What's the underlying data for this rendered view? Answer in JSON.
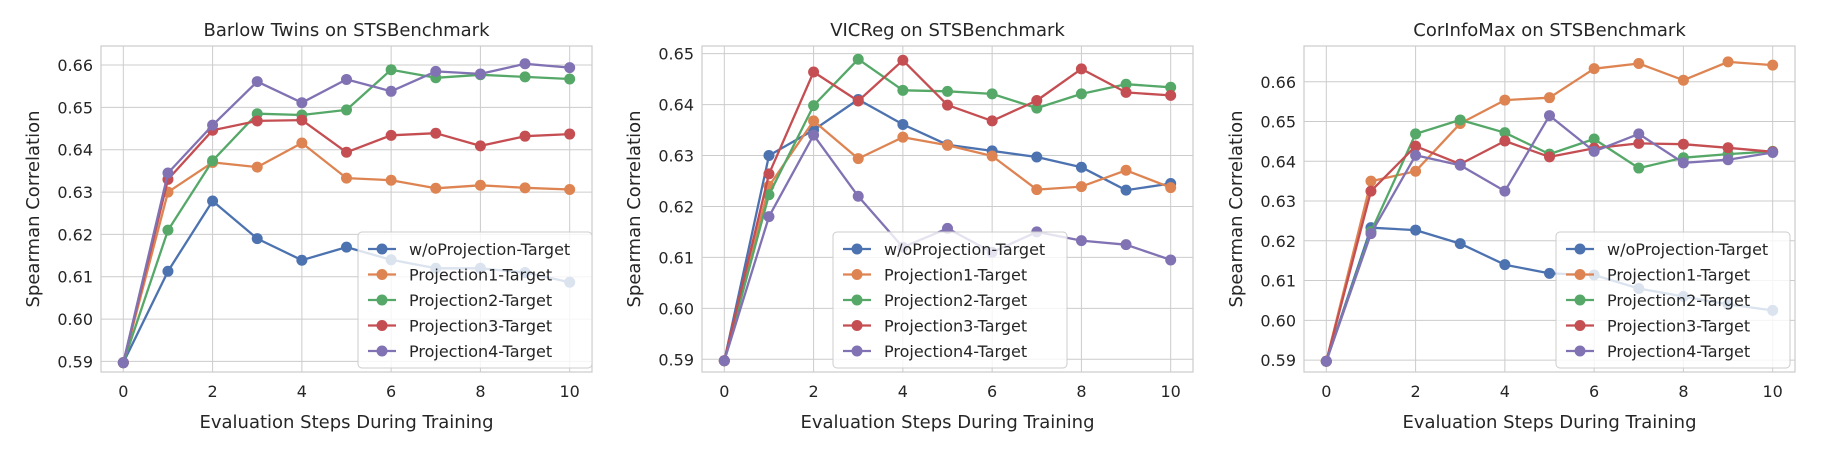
{
  "chart_data": [
    {
      "type": "line",
      "title": "Barlow Twins on STSBenchmark",
      "xlabel": "Evaluation Steps During Training",
      "ylabel": "Spearman Correlation",
      "xlim": [
        -0.5,
        10.5
      ],
      "ylim": [
        0.5875,
        0.6645
      ],
      "xticks": [
        0,
        2,
        4,
        6,
        8,
        10
      ],
      "yticks": [
        0.59,
        0.6,
        0.61,
        0.62,
        0.63,
        0.64,
        0.65,
        0.66
      ],
      "ytick_labels": [
        "0.59",
        "0.60",
        "0.61",
        "0.62",
        "0.63",
        "0.64",
        "0.65",
        "0.66"
      ],
      "legend": "lower-right",
      "grid": true,
      "x": [
        0,
        1,
        2,
        3,
        4,
        5,
        6,
        7,
        8,
        9,
        10
      ],
      "series": [
        {
          "name": "w/oProjection-Target",
          "color": "#4c72b0",
          "values": [
            0.5897,
            0.6113,
            0.6279,
            0.619,
            0.6139,
            0.617,
            0.614,
            0.612,
            0.612,
            0.611,
            0.6087
          ]
        },
        {
          "name": "Projection1-Target",
          "color": "#dd8452",
          "values": [
            0.5897,
            0.63,
            0.637,
            0.6359,
            0.6416,
            0.6333,
            0.6328,
            0.6309,
            0.6316,
            0.631,
            0.6306
          ]
        },
        {
          "name": "Projection2-Target",
          "color": "#55a868",
          "values": [
            0.5897,
            0.621,
            0.6374,
            0.6485,
            0.6482,
            0.6494,
            0.6589,
            0.657,
            0.6577,
            0.6572,
            0.6567
          ]
        },
        {
          "name": "Projection3-Target",
          "color": "#c44e52",
          "values": [
            0.5897,
            0.633,
            0.6446,
            0.6468,
            0.647,
            0.6394,
            0.6434,
            0.6439,
            0.6409,
            0.6432,
            0.6437
          ]
        },
        {
          "name": "Projection4-Target",
          "color": "#8172b3",
          "values": [
            0.5897,
            0.6345,
            0.6458,
            0.6561,
            0.6511,
            0.6566,
            0.6538,
            0.6585,
            0.6579,
            0.6603,
            0.6594
          ]
        }
      ]
    },
    {
      "type": "line",
      "title": "VICReg on STSBenchmark",
      "xlabel": "Evaluation Steps During Training",
      "ylabel": "Spearman Correlation",
      "xlim": [
        -0.5,
        10.5
      ],
      "ylim": [
        0.5875,
        0.6515
      ],
      "xticks": [
        0,
        2,
        4,
        6,
        8,
        10
      ],
      "yticks": [
        0.59,
        0.6,
        0.61,
        0.62,
        0.63,
        0.64,
        0.65
      ],
      "ytick_labels": [
        "0.59",
        "0.60",
        "0.61",
        "0.62",
        "0.63",
        "0.64",
        "0.65"
      ],
      "legend": "lower-right",
      "grid": true,
      "x": [
        0,
        1,
        2,
        3,
        4,
        5,
        6,
        7,
        8,
        9,
        10
      ],
      "series": [
        {
          "name": "w/oProjection-Target",
          "color": "#4c72b0",
          "values": [
            0.5897,
            0.63,
            0.635,
            0.641,
            0.6361,
            0.6321,
            0.6309,
            0.6297,
            0.6277,
            0.6232,
            0.6245
          ]
        },
        {
          "name": "Projection1-Target",
          "color": "#dd8452",
          "values": [
            0.5897,
            0.624,
            0.6368,
            0.6294,
            0.6336,
            0.632,
            0.6299,
            0.6233,
            0.6239,
            0.6271,
            0.6237
          ]
        },
        {
          "name": "Projection2-Target",
          "color": "#55a868",
          "values": [
            0.5897,
            0.6223,
            0.6398,
            0.6489,
            0.6428,
            0.6426,
            0.6421,
            0.6393,
            0.6421,
            0.644,
            0.6434
          ]
        },
        {
          "name": "Projection3-Target",
          "color": "#c44e52",
          "values": [
            0.5897,
            0.6264,
            0.6464,
            0.6407,
            0.6487,
            0.6399,
            0.6368,
            0.6408,
            0.647,
            0.6424,
            0.6418
          ]
        },
        {
          "name": "Projection4-Target",
          "color": "#8172b3",
          "values": [
            0.5897,
            0.618,
            0.634,
            0.622,
            0.612,
            0.6157,
            0.611,
            0.615,
            0.6133,
            0.6125,
            0.6095
          ]
        }
      ]
    },
    {
      "type": "line",
      "title": "CorInfoMax on STSBenchmark",
      "xlabel": "Evaluation Steps During Training",
      "ylabel": "Spearman Correlation",
      "xlim": [
        -0.5,
        10.5
      ],
      "ylim": [
        0.587,
        0.669
      ],
      "xticks": [
        0,
        2,
        4,
        6,
        8,
        10
      ],
      "yticks": [
        0.59,
        0.6,
        0.61,
        0.62,
        0.63,
        0.64,
        0.65,
        0.66
      ],
      "ytick_labels": [
        "0.59",
        "0.60",
        "0.61",
        "0.62",
        "0.63",
        "0.64",
        "0.65",
        "0.66"
      ],
      "legend": "lower-right",
      "grid": true,
      "x": [
        0,
        1,
        2,
        3,
        4,
        5,
        6,
        7,
        8,
        9,
        10
      ],
      "series": [
        {
          "name": "w/oProjection-Target",
          "color": "#4c72b0",
          "values": [
            0.5897,
            0.6233,
            0.6227,
            0.6193,
            0.614,
            0.6118,
            0.6114,
            0.608,
            0.606,
            0.604,
            0.6025
          ]
        },
        {
          "name": "Projection1-Target",
          "color": "#dd8452",
          "values": [
            0.5897,
            0.635,
            0.6375,
            0.6495,
            0.6554,
            0.656,
            0.6633,
            0.6646,
            0.6604,
            0.665,
            0.6642
          ]
        },
        {
          "name": "Projection2-Target",
          "color": "#55a868",
          "values": [
            0.5897,
            0.6223,
            0.6469,
            0.6504,
            0.6472,
            0.6418,
            0.6456,
            0.6383,
            0.6409,
            0.6418,
            0.6425
          ]
        },
        {
          "name": "Projection3-Target",
          "color": "#c44e52",
          "values": [
            0.5897,
            0.6325,
            0.6438,
            0.6393,
            0.6451,
            0.6411,
            0.6433,
            0.6445,
            0.6443,
            0.6434,
            0.6424
          ]
        },
        {
          "name": "Projection4-Target",
          "color": "#8172b3",
          "values": [
            0.5897,
            0.6218,
            0.6415,
            0.639,
            0.6325,
            0.6515,
            0.6425,
            0.6469,
            0.6396,
            0.6404,
            0.6422
          ]
        }
      ]
    }
  ]
}
